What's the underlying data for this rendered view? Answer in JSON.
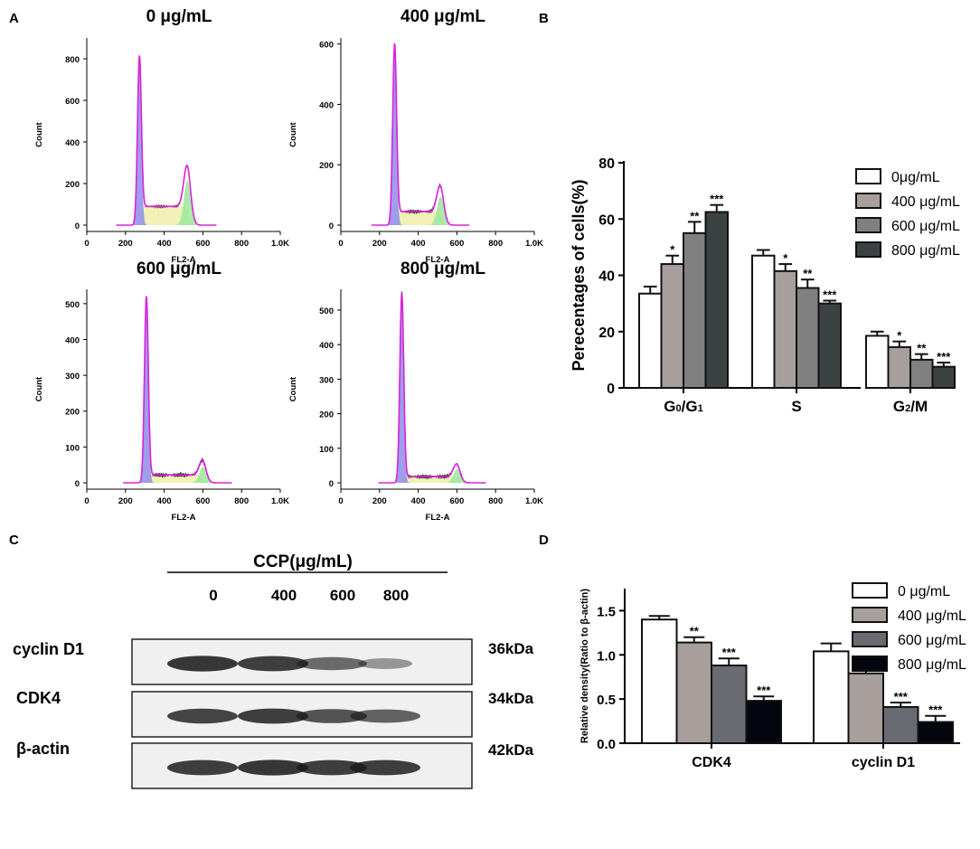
{
  "panel_letters": {
    "a": "A",
    "b": "B",
    "c": "C",
    "d": "D"
  },
  "colors": {
    "fill_blue": "#8d8de6",
    "fill_yellow": "#efeeaa",
    "fill_green": "#9be89b",
    "trace_magenta": "#dd22dd",
    "bar_0": "#ffffff",
    "bar_400": "#a89e9b",
    "bar_600": "#808080",
    "bar_800": "#3b4342",
    "d_bar_600": "#6a6a72",
    "d_bar_800": "#050510",
    "blot_bg": "#f0f0f0",
    "blot_band": "#1c1c1c"
  },
  "chart_data": [
    {
      "type": "histogram",
      "title": "0 μg/mL",
      "xlabel": "FL2-A",
      "ylabel": "Count",
      "x_ticks": [
        "0",
        "200",
        "400",
        "600",
        "800",
        "1.0K"
      ],
      "xlim": [
        0,
        1000
      ],
      "ylim": [
        0,
        900
      ],
      "y_ticks": [
        0,
        200,
        400,
        600,
        800
      ],
      "g1_peak_x": 272,
      "g1_peak_count": 790,
      "g2_peak_x": 520,
      "g2_peak_count": 215,
      "s_phase_level": 90
    },
    {
      "type": "histogram",
      "title": "400 μg/mL",
      "xlabel": "FL2-A",
      "ylabel": "Count",
      "x_ticks": [
        "0",
        "200",
        "400",
        "600",
        "800",
        "1.0K"
      ],
      "xlim": [
        0,
        1000
      ],
      "ylim": [
        0,
        620
      ],
      "y_ticks": [
        0,
        200,
        400,
        600
      ],
      "g1_peak_x": 278,
      "g1_peak_count": 590,
      "g2_peak_x": 515,
      "g2_peak_count": 95,
      "s_phase_level": 45
    },
    {
      "type": "histogram",
      "title": "600 μg/mL",
      "xlabel": "FL2-A",
      "ylabel": "Count",
      "x_ticks": [
        "0",
        "200",
        "400",
        "600",
        "800",
        "1.0K"
      ],
      "xlim": [
        0,
        1000
      ],
      "ylim": [
        0,
        540
      ],
      "y_ticks": [
        0,
        100,
        200,
        300,
        400,
        500
      ],
      "g1_peak_x": 308,
      "g1_peak_count": 515,
      "g2_peak_x": 600,
      "g2_peak_count": 45,
      "s_phase_level": 22
    },
    {
      "type": "histogram",
      "title": "800 μg/mL",
      "xlabel": "FL2-A",
      "ylabel": "Count",
      "x_ticks": [
        "0",
        "200",
        "400",
        "600",
        "800",
        "1.0K"
      ],
      "xlim": [
        0,
        1000
      ],
      "ylim": [
        0,
        560
      ],
      "y_ticks": [
        0,
        100,
        200,
        300,
        400,
        500
      ],
      "g1_peak_x": 315,
      "g1_peak_count": 545,
      "g2_peak_x": 600,
      "g2_peak_count": 40,
      "s_phase_level": 18
    },
    {
      "type": "bar",
      "ylabel": "Perecentages of cells(%)",
      "ylim": [
        0,
        80
      ],
      "y_ticks": [
        0,
        20,
        40,
        60,
        80
      ],
      "categories": [
        "G0/G1",
        "S",
        "G2/M"
      ],
      "category_parts": [
        [
          "G",
          "0",
          "/G",
          "1"
        ],
        [
          "S"
        ],
        [
          "G",
          "2",
          "/M"
        ]
      ],
      "series": [
        {
          "name": "0μg/mL",
          "values": [
            33.5,
            47,
            18.5
          ],
          "errors": [
            2.5,
            2,
            1.5
          ],
          "stars": [
            "",
            "",
            ""
          ]
        },
        {
          "name": "400 μg/mL",
          "values": [
            44,
            41.5,
            14.5
          ],
          "errors": [
            3,
            2.5,
            2
          ],
          "stars": [
            "*",
            "*",
            "*"
          ]
        },
        {
          "name": "600 μg/mL",
          "values": [
            55,
            35.5,
            10
          ],
          "errors": [
            4,
            3,
            2
          ],
          "stars": [
            "**",
            "**",
            "**"
          ]
        },
        {
          "name": "800 μg/mL",
          "values": [
            62.5,
            30,
            7.5
          ],
          "errors": [
            2.5,
            1,
            1.5
          ],
          "stars": [
            "***",
            "***",
            "***"
          ]
        }
      ]
    },
    {
      "type": "bar",
      "ylabel": "Relative density(Ratio to β-actin)",
      "ylim": [
        0,
        1.75
      ],
      "y_ticks": [
        "0.0",
        "0.5",
        "1.0",
        "1.5"
      ],
      "categories": [
        "CDK4",
        "cyclin D1"
      ],
      "series": [
        {
          "name": "0 μg/mL",
          "values": [
            1.4,
            1.04
          ],
          "errors": [
            0.04,
            0.09
          ],
          "stars": [
            "",
            ""
          ]
        },
        {
          "name": "400 μg/mL",
          "values": [
            1.14,
            0.79
          ],
          "errors": [
            0.06,
            0.04
          ],
          "stars": [
            "**",
            "*"
          ]
        },
        {
          "name": "600 μg/mL",
          "values": [
            0.88,
            0.41
          ],
          "errors": [
            0.08,
            0.05
          ],
          "stars": [
            "***",
            "***"
          ]
        },
        {
          "name": "800 μg/mL",
          "values": [
            0.48,
            0.24
          ],
          "errors": [
            0.05,
            0.07
          ],
          "stars": [
            "***",
            "***"
          ]
        }
      ]
    }
  ],
  "blot": {
    "header": "CCP(μg/mL)",
    "lanes": [
      "0",
      "400",
      "600",
      "800"
    ],
    "rows": [
      {
        "label": "cyclin D1",
        "kda": "36kDa",
        "intensity": [
          0.9,
          0.85,
          0.55,
          0.25
        ]
      },
      {
        "label": "CDK4",
        "kda": "34kDa",
        "intensity": [
          0.8,
          0.85,
          0.7,
          0.6
        ]
      },
      {
        "label": "β-actin",
        "kda": "42kDa",
        "intensity": [
          0.85,
          0.9,
          0.85,
          0.85
        ]
      }
    ]
  }
}
